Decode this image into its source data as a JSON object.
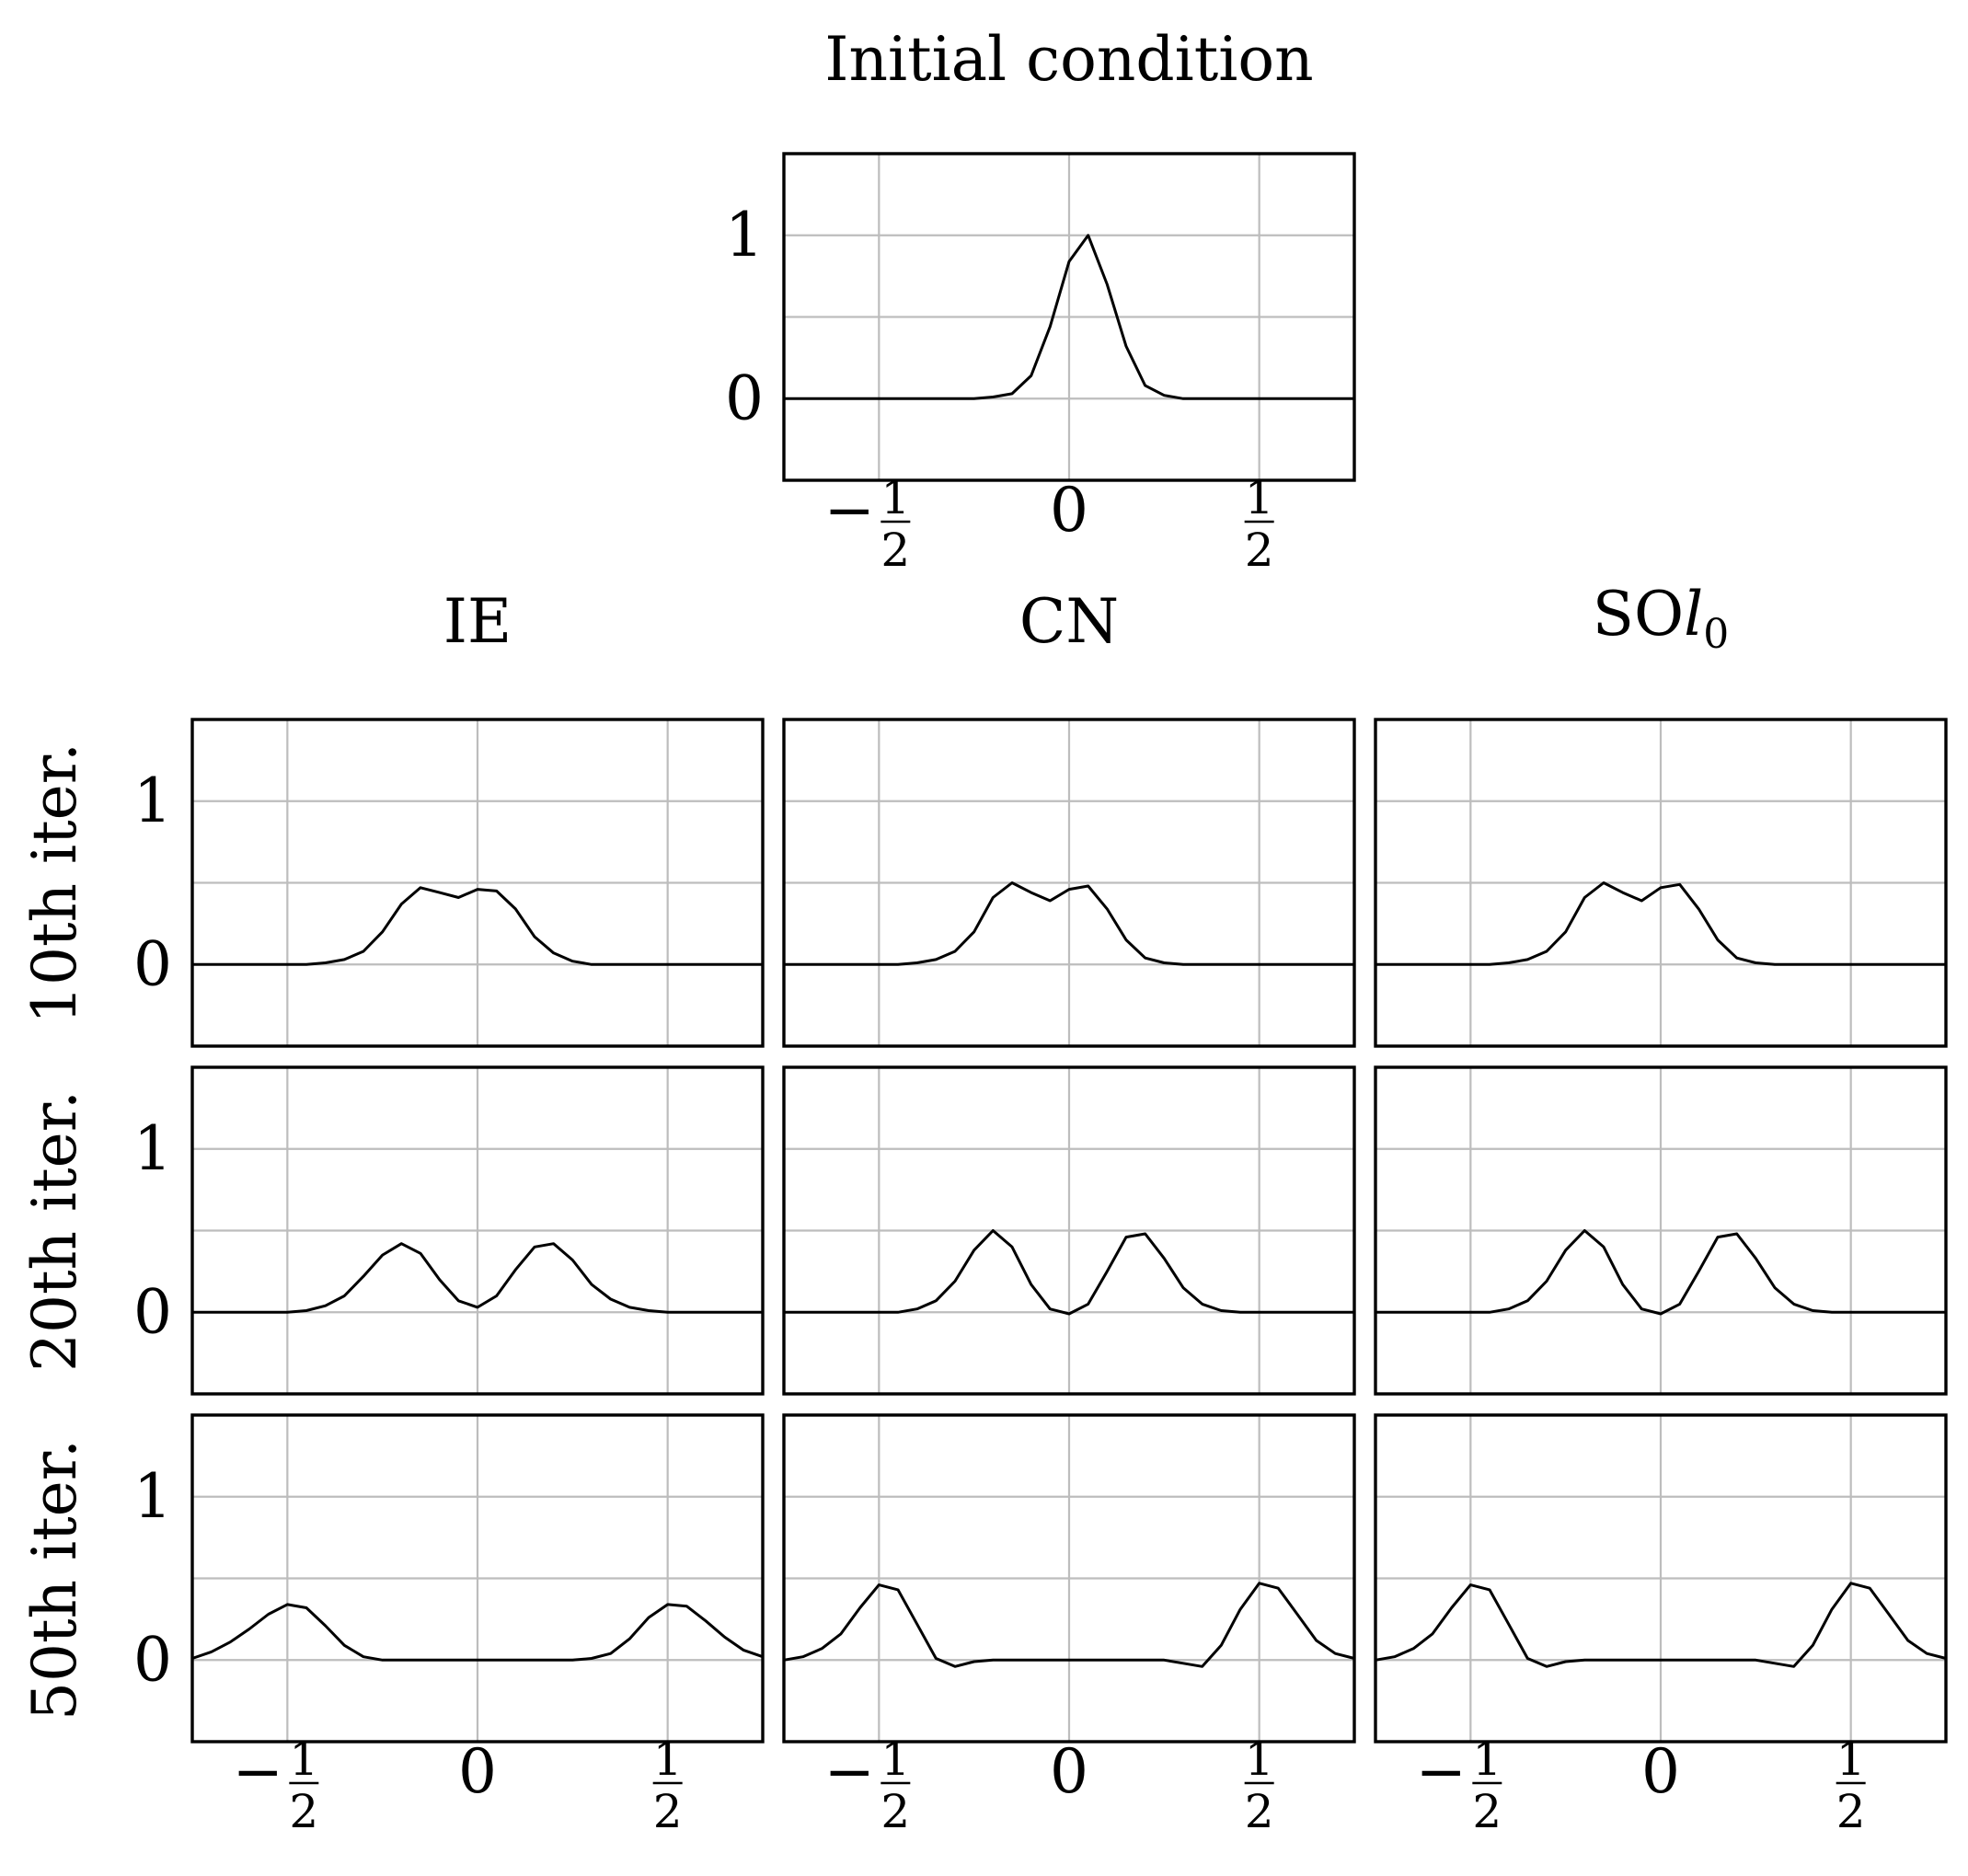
{
  "figure": {
    "title": "Initial condition",
    "column_titles": [
      "IE",
      "CN",
      "SOl0"
    ],
    "row_labels": [
      "10th iter.",
      "20th iter.",
      "50th iter."
    ]
  },
  "chart_data": [
    {
      "id": "initial",
      "type": "line",
      "title": "Initial condition",
      "xlim": [
        -0.75,
        0.75
      ],
      "ylim": [
        -0.5,
        1.5
      ],
      "xticks": [
        -0.5,
        0,
        0.5
      ],
      "xtick_labels": [
        "−1/2",
        "0",
        "1/2"
      ],
      "yticks": [
        0,
        1
      ],
      "ytick_labels": [
        "0",
        "1"
      ],
      "grid": true,
      "x": [
        -0.75,
        -0.7,
        -0.65,
        -0.6,
        -0.55,
        -0.5,
        -0.45,
        -0.4,
        -0.35,
        -0.3,
        -0.25,
        -0.2,
        -0.15,
        -0.1,
        -0.05,
        0,
        0.05,
        0.1,
        0.15,
        0.2,
        0.25,
        0.3,
        0.35,
        0.4,
        0.45,
        0.5,
        0.55,
        0.6,
        0.65,
        0.7,
        0.75
      ],
      "y": [
        0,
        0,
        0,
        0,
        0,
        0,
        0,
        0,
        0,
        0,
        0,
        0.01,
        0.03,
        0.14,
        0.44,
        0.84,
        1.0,
        0.7,
        0.32,
        0.08,
        0.02,
        0,
        0,
        0,
        0,
        0,
        0,
        0,
        0,
        0,
        0
      ]
    },
    {
      "id": "ie-10",
      "type": "line",
      "method": "IE",
      "iteration": "10th iter.",
      "xlim": [
        -0.75,
        0.75
      ],
      "ylim": [
        -0.5,
        1.5
      ],
      "x": [
        -0.75,
        -0.7,
        -0.65,
        -0.6,
        -0.55,
        -0.5,
        -0.45,
        -0.4,
        -0.35,
        -0.3,
        -0.25,
        -0.2,
        -0.15,
        -0.1,
        -0.05,
        0,
        0.05,
        0.1,
        0.15,
        0.2,
        0.25,
        0.3,
        0.35,
        0.4,
        0.45,
        0.5,
        0.55,
        0.6,
        0.65,
        0.7,
        0.75
      ],
      "y": [
        0,
        0,
        0,
        0,
        0,
        0,
        0,
        0.01,
        0.03,
        0.08,
        0.2,
        0.37,
        0.47,
        0.44,
        0.41,
        0.46,
        0.45,
        0.34,
        0.17,
        0.07,
        0.02,
        0,
        0,
        0,
        0,
        0,
        0,
        0,
        0,
        0,
        0
      ]
    },
    {
      "id": "cn-10",
      "type": "line",
      "method": "CN",
      "iteration": "10th iter.",
      "xlim": [
        -0.75,
        0.75
      ],
      "ylim": [
        -0.5,
        1.5
      ],
      "x": [
        -0.75,
        -0.7,
        -0.65,
        -0.6,
        -0.55,
        -0.5,
        -0.45,
        -0.4,
        -0.35,
        -0.3,
        -0.25,
        -0.2,
        -0.15,
        -0.1,
        -0.05,
        0,
        0.05,
        0.1,
        0.15,
        0.2,
        0.25,
        0.3,
        0.35,
        0.4,
        0.45,
        0.5,
        0.55,
        0.6,
        0.65,
        0.7,
        0.75
      ],
      "y": [
        0,
        0,
        0,
        0,
        0,
        0,
        0,
        0.01,
        0.03,
        0.08,
        0.2,
        0.41,
        0.5,
        0.44,
        0.39,
        0.46,
        0.48,
        0.34,
        0.15,
        0.04,
        0.01,
        0,
        0,
        0,
        0,
        0,
        0,
        0,
        0,
        0,
        0
      ]
    },
    {
      "id": "so-10",
      "type": "line",
      "method": "SOl0",
      "iteration": "10th iter.",
      "xlim": [
        -0.75,
        0.75
      ],
      "ylim": [
        -0.5,
        1.5
      ],
      "x": [
        -0.75,
        -0.7,
        -0.65,
        -0.6,
        -0.55,
        -0.5,
        -0.45,
        -0.4,
        -0.35,
        -0.3,
        -0.25,
        -0.2,
        -0.15,
        -0.1,
        -0.05,
        0,
        0.05,
        0.1,
        0.15,
        0.2,
        0.25,
        0.3,
        0.35,
        0.4,
        0.45,
        0.5,
        0.55,
        0.6,
        0.65,
        0.7,
        0.75
      ],
      "y": [
        0,
        0,
        0,
        0,
        0,
        0,
        0,
        0.01,
        0.03,
        0.08,
        0.2,
        0.41,
        0.5,
        0.44,
        0.39,
        0.47,
        0.49,
        0.34,
        0.15,
        0.04,
        0.01,
        0,
        0,
        0,
        0,
        0,
        0,
        0,
        0,
        0,
        0
      ]
    },
    {
      "id": "ie-20",
      "type": "line",
      "method": "IE",
      "iteration": "20th iter.",
      "xlim": [
        -0.75,
        0.75
      ],
      "ylim": [
        -0.5,
        1.5
      ],
      "x": [
        -0.75,
        -0.7,
        -0.65,
        -0.6,
        -0.55,
        -0.5,
        -0.45,
        -0.4,
        -0.35,
        -0.3,
        -0.25,
        -0.2,
        -0.15,
        -0.1,
        -0.05,
        0,
        0.05,
        0.1,
        0.15,
        0.2,
        0.25,
        0.3,
        0.35,
        0.4,
        0.45,
        0.5,
        0.55,
        0.6,
        0.65,
        0.7,
        0.75
      ],
      "y": [
        0,
        0,
        0,
        0,
        0,
        0,
        0.01,
        0.04,
        0.1,
        0.22,
        0.35,
        0.42,
        0.36,
        0.2,
        0.07,
        0.03,
        0.1,
        0.26,
        0.4,
        0.42,
        0.32,
        0.17,
        0.08,
        0.03,
        0.01,
        0,
        0,
        0,
        0,
        0,
        0
      ]
    },
    {
      "id": "cn-20",
      "type": "line",
      "method": "CN",
      "iteration": "20th iter.",
      "xlim": [
        -0.75,
        0.75
      ],
      "ylim": [
        -0.5,
        1.5
      ],
      "x": [
        -0.75,
        -0.7,
        -0.65,
        -0.6,
        -0.55,
        -0.5,
        -0.45,
        -0.4,
        -0.35,
        -0.3,
        -0.25,
        -0.2,
        -0.15,
        -0.1,
        -0.05,
        0,
        0.05,
        0.1,
        0.15,
        0.2,
        0.25,
        0.3,
        0.35,
        0.4,
        0.45,
        0.5,
        0.55,
        0.6,
        0.65,
        0.7,
        0.75
      ],
      "y": [
        0,
        0,
        0,
        0,
        0,
        0,
        0,
        0.02,
        0.07,
        0.19,
        0.38,
        0.5,
        0.4,
        0.17,
        0.02,
        -0.01,
        0.05,
        0.25,
        0.46,
        0.48,
        0.33,
        0.15,
        0.05,
        0.01,
        0,
        0,
        0,
        0,
        0,
        0,
        0
      ]
    },
    {
      "id": "so-20",
      "type": "line",
      "method": "SOl0",
      "iteration": "20th iter.",
      "xlim": [
        -0.75,
        0.75
      ],
      "ylim": [
        -0.5,
        1.5
      ],
      "x": [
        -0.75,
        -0.7,
        -0.65,
        -0.6,
        -0.55,
        -0.5,
        -0.45,
        -0.4,
        -0.35,
        -0.3,
        -0.25,
        -0.2,
        -0.15,
        -0.1,
        -0.05,
        0,
        0.05,
        0.1,
        0.15,
        0.2,
        0.25,
        0.3,
        0.35,
        0.4,
        0.45,
        0.5,
        0.55,
        0.6,
        0.65,
        0.7,
        0.75
      ],
      "y": [
        0,
        0,
        0,
        0,
        0,
        0,
        0,
        0.02,
        0.07,
        0.19,
        0.38,
        0.5,
        0.4,
        0.17,
        0.02,
        -0.01,
        0.05,
        0.25,
        0.46,
        0.48,
        0.33,
        0.15,
        0.05,
        0.01,
        0,
        0,
        0,
        0,
        0,
        0,
        0
      ]
    },
    {
      "id": "ie-50",
      "type": "line",
      "method": "IE",
      "iteration": "50th iter.",
      "xlim": [
        -0.75,
        0.75
      ],
      "ylim": [
        -0.5,
        1.5
      ],
      "x": [
        -0.75,
        -0.7,
        -0.65,
        -0.6,
        -0.55,
        -0.5,
        -0.45,
        -0.4,
        -0.35,
        -0.3,
        -0.25,
        -0.2,
        -0.15,
        -0.1,
        -0.05,
        0,
        0.05,
        0.1,
        0.15,
        0.2,
        0.25,
        0.3,
        0.35,
        0.4,
        0.45,
        0.5,
        0.55,
        0.6,
        0.65,
        0.7,
        0.75
      ],
      "y": [
        0.01,
        0.05,
        0.11,
        0.19,
        0.28,
        0.34,
        0.32,
        0.21,
        0.09,
        0.02,
        0,
        0,
        0,
        0,
        0,
        0,
        0,
        0,
        0,
        0,
        0,
        0.01,
        0.04,
        0.13,
        0.26,
        0.34,
        0.33,
        0.24,
        0.14,
        0.06,
        0.02
      ]
    },
    {
      "id": "cn-50",
      "type": "line",
      "method": "CN",
      "iteration": "50th iter.",
      "xlim": [
        -0.75,
        0.75
      ],
      "ylim": [
        -0.5,
        1.5
      ],
      "x": [
        -0.75,
        -0.7,
        -0.65,
        -0.6,
        -0.55,
        -0.5,
        -0.45,
        -0.4,
        -0.35,
        -0.3,
        -0.25,
        -0.2,
        -0.15,
        -0.1,
        -0.05,
        0,
        0.05,
        0.1,
        0.15,
        0.2,
        0.25,
        0.3,
        0.35,
        0.4,
        0.45,
        0.5,
        0.55,
        0.6,
        0.65,
        0.7,
        0.75
      ],
      "y": [
        0,
        0.02,
        0.07,
        0.16,
        0.32,
        0.46,
        0.43,
        0.22,
        0.01,
        -0.04,
        -0.01,
        0,
        0,
        0,
        0,
        0,
        0,
        0,
        0,
        0,
        0,
        -0.02,
        -0.04,
        0.09,
        0.31,
        0.47,
        0.44,
        0.28,
        0.12,
        0.04,
        0.01
      ]
    },
    {
      "id": "so-50",
      "type": "line",
      "method": "SOl0",
      "iteration": "50th iter.",
      "xlim": [
        -0.75,
        0.75
      ],
      "ylim": [
        -0.5,
        1.5
      ],
      "x": [
        -0.75,
        -0.7,
        -0.65,
        -0.6,
        -0.55,
        -0.5,
        -0.45,
        -0.4,
        -0.35,
        -0.3,
        -0.25,
        -0.2,
        -0.15,
        -0.1,
        -0.05,
        0,
        0.05,
        0.1,
        0.15,
        0.2,
        0.25,
        0.3,
        0.35,
        0.4,
        0.45,
        0.5,
        0.55,
        0.6,
        0.65,
        0.7,
        0.75
      ],
      "y": [
        0,
        0.02,
        0.07,
        0.16,
        0.32,
        0.46,
        0.43,
        0.22,
        0.01,
        -0.04,
        -0.01,
        0,
        0,
        0,
        0,
        0,
        0,
        0,
        0,
        0,
        0,
        -0.02,
        -0.04,
        0.09,
        0.31,
        0.47,
        0.44,
        0.28,
        0.12,
        0.04,
        0.01
      ]
    }
  ]
}
